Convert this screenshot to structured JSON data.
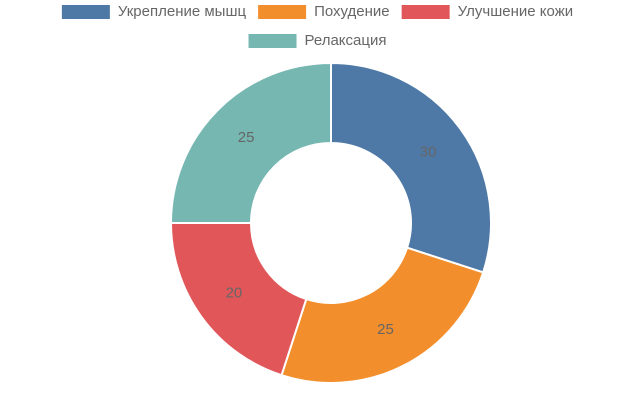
{
  "chart_data": {
    "type": "donut",
    "categories": [
      "Укрепление мышц",
      "Похудение",
      "Улучшение кожи",
      "Релаксация"
    ],
    "values": [
      30,
      25,
      20,
      25
    ],
    "colors": [
      "#4e79a7",
      "#f28e2b",
      "#e15759",
      "#76b7b2"
    ],
    "legend": "top"
  }
}
